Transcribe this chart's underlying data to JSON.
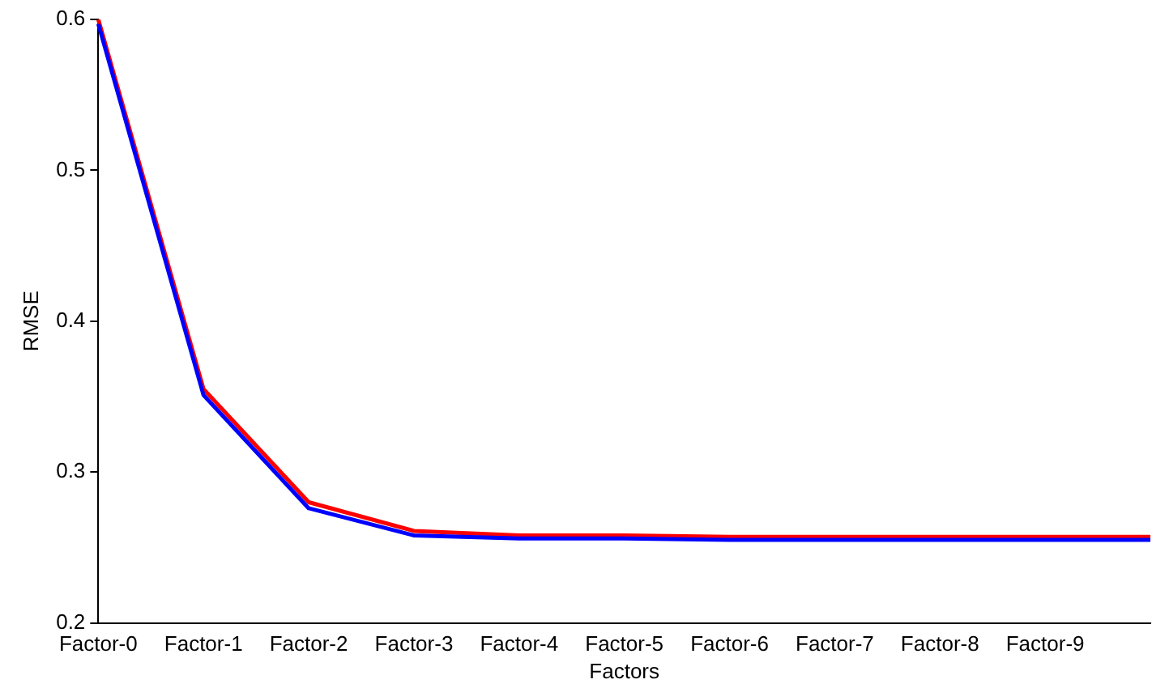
{
  "chart_data": {
    "type": "line",
    "xlabel": "Factors",
    "ylabel": "RMSE",
    "categories": [
      "Factor-0",
      "Factor-1",
      "Factor-2",
      "Factor-3",
      "Factor-4",
      "Factor-5",
      "Factor-6",
      "Factor-7",
      "Factor-8",
      "Factor-9",
      null
    ],
    "series": [
      {
        "color": "#0000ff",
        "values": [
          0.597,
          0.351,
          0.276,
          0.258,
          0.256,
          0.256,
          0.255,
          0.255,
          0.255,
          0.255,
          0.255
        ]
      },
      {
        "color": "#ff0000",
        "values": [
          0.6,
          0.355,
          0.28,
          0.261,
          0.258,
          0.258,
          0.257,
          0.257,
          0.257,
          0.257,
          0.257
        ]
      }
    ],
    "ylim": [
      0.2,
      0.6
    ],
    "yticks": [
      0.2,
      0.3,
      0.4,
      0.5,
      0.6
    ],
    "grid": false,
    "legend": false,
    "marker": "none",
    "line_style": "solid"
  }
}
